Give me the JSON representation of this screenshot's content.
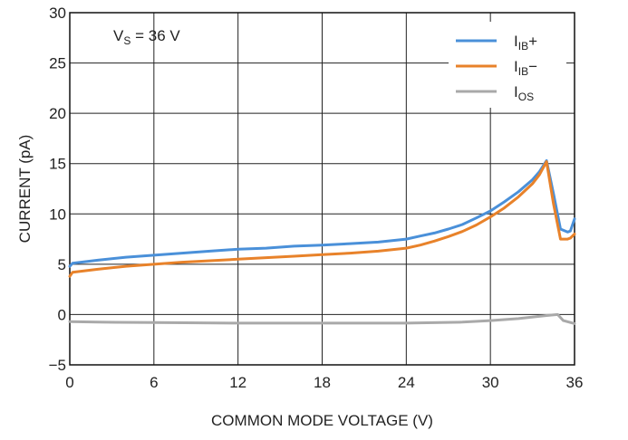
{
  "chart_data": {
    "type": "line",
    "annotation": {
      "main": "V",
      "sub": "S",
      "rest": " = 36 V"
    },
    "xlabel": "COMMON MODE VOLTAGE (V)",
    "ylabel": "CURRENT (pA)",
    "xlim": [
      0,
      36
    ],
    "ylim": [
      -5,
      30
    ],
    "xticks": [
      "0",
      "6",
      "12",
      "18",
      "24",
      "30",
      "36"
    ],
    "yticks": [
      "30",
      "25",
      "20",
      "15",
      "10",
      "5",
      "0",
      "−5"
    ],
    "grid": true,
    "legend_position": "top-right",
    "series": [
      {
        "name": "I_IB+",
        "label": {
          "main": "I",
          "sub": "IB",
          "suffix": "+"
        },
        "color": "#4a90d9",
        "x": [
          0,
          0.2,
          2,
          4,
          6,
          8,
          10,
          12,
          14,
          16,
          18,
          20,
          22,
          24,
          25,
          26,
          27,
          28,
          29,
          30,
          31,
          32,
          33,
          33.5,
          34,
          34.5,
          35,
          35.5,
          35.7,
          36
        ],
        "y": [
          4.8,
          5.1,
          5.4,
          5.7,
          5.9,
          6.1,
          6.3,
          6.5,
          6.6,
          6.8,
          6.9,
          7.05,
          7.2,
          7.5,
          7.8,
          8.1,
          8.5,
          8.95,
          9.6,
          10.3,
          11.2,
          12.2,
          13.4,
          14.2,
          15.3,
          12.0,
          8.5,
          8.2,
          8.3,
          9.5
        ]
      },
      {
        "name": "I_IB−",
        "label": {
          "main": "I",
          "sub": "IB",
          "suffix": "−"
        },
        "color": "#e8822a",
        "x": [
          0,
          0.2,
          2,
          4,
          6,
          8,
          10,
          12,
          14,
          16,
          18,
          20,
          22,
          24,
          25,
          26,
          27,
          28,
          29,
          30,
          31,
          32,
          33,
          33.5,
          34,
          34.5,
          35,
          35.5,
          35.7,
          36
        ],
        "y": [
          3.8,
          4.2,
          4.5,
          4.8,
          5.0,
          5.2,
          5.35,
          5.5,
          5.65,
          5.8,
          5.95,
          6.1,
          6.3,
          6.6,
          6.9,
          7.3,
          7.75,
          8.25,
          8.9,
          9.7,
          10.6,
          11.7,
          13.0,
          13.9,
          15.2,
          11.0,
          7.5,
          7.5,
          7.6,
          8.0
        ]
      },
      {
        "name": "I_OS",
        "label": {
          "main": "I",
          "sub": "OS",
          "suffix": ""
        },
        "color": "#a9a9a9",
        "x": [
          0,
          2,
          6,
          12,
          18,
          24,
          28,
          30,
          32,
          34,
          34.8,
          35.2,
          36
        ],
        "y": [
          -0.7,
          -0.75,
          -0.8,
          -0.85,
          -0.85,
          -0.85,
          -0.75,
          -0.6,
          -0.4,
          -0.1,
          0.0,
          -0.6,
          -0.9
        ]
      }
    ]
  }
}
